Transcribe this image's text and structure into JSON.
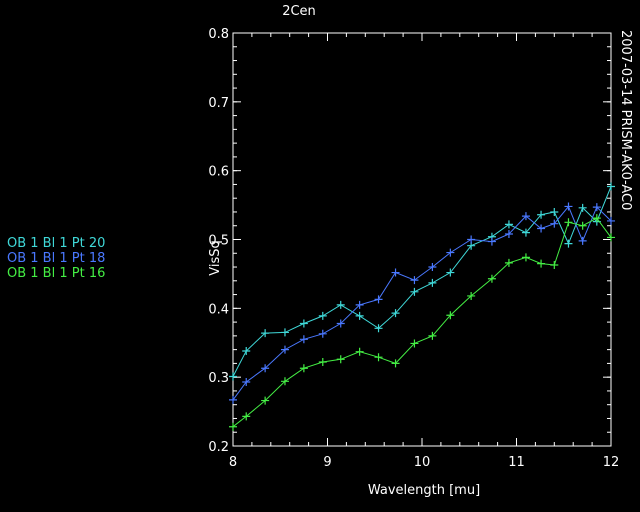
{
  "chart_data": {
    "type": "line",
    "title": "2Cen",
    "side_label": "2007-03-14 PRISM-AK0-AC0",
    "xlabel": "Wavelength [mu]",
    "ylabel": "VisSq",
    "xlim": [
      8,
      12
    ],
    "ylim": [
      0.2,
      0.8
    ],
    "xticks": [
      8,
      9,
      10,
      11,
      12
    ],
    "yticks": [
      0.2,
      0.3,
      0.4,
      0.5,
      0.6,
      0.7,
      0.8
    ],
    "ytick_labels": [
      "0.2",
      "0.3",
      "0.4",
      "0.5",
      "0.6",
      "0.7",
      "0.8"
    ],
    "x": [
      8.0,
      8.14,
      8.34,
      8.55,
      8.75,
      8.95,
      9.14,
      9.34,
      9.54,
      9.72,
      9.92,
      10.11,
      10.3,
      10.52,
      10.74,
      10.92,
      11.1,
      11.26,
      11.4,
      11.55,
      11.7,
      11.85,
      12.0
    ],
    "series": [
      {
        "name": "OB 1 Bl 1 Pt 20",
        "color": "#3fd8d8",
        "values": [
          0.301,
          0.338,
          0.364,
          0.365,
          0.378,
          0.389,
          0.405,
          0.389,
          0.371,
          0.393,
          0.424,
          0.437,
          0.452,
          0.491,
          0.504,
          0.522,
          0.51,
          0.536,
          0.54,
          0.494,
          0.546,
          0.526,
          0.577
        ]
      },
      {
        "name": "OB 1 Bl 1 Pt 18",
        "color": "#4a78ff",
        "values": [
          0.267,
          0.293,
          0.313,
          0.34,
          0.355,
          0.363,
          0.378,
          0.405,
          0.413,
          0.452,
          0.441,
          0.46,
          0.481,
          0.5,
          0.497,
          0.508,
          0.534,
          0.516,
          0.523,
          0.548,
          0.498,
          0.547,
          0.527
        ]
      },
      {
        "name": "OB 1 Bl 1 Pt 16",
        "color": "#44ee44",
        "values": [
          0.228,
          0.243,
          0.266,
          0.294,
          0.313,
          0.322,
          0.326,
          0.337,
          0.329,
          0.32,
          0.349,
          0.36,
          0.39,
          0.418,
          0.443,
          0.466,
          0.474,
          0.465,
          0.463,
          0.525,
          0.52,
          0.531,
          0.503
        ]
      }
    ],
    "legend_placement": "left"
  }
}
